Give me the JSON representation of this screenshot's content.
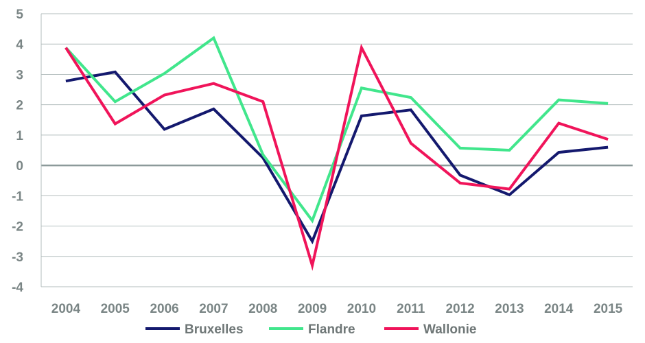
{
  "chart_data": {
    "type": "line",
    "title": "",
    "xlabel": "",
    "ylabel": "",
    "ylim": [
      -4,
      5
    ],
    "yticks": [
      5,
      4,
      3,
      2,
      1,
      0,
      -1,
      -2,
      -3,
      -4
    ],
    "x": [
      "2004",
      "2005",
      "2006",
      "2007",
      "2008",
      "2009",
      "2010",
      "2011",
      "2012",
      "2013",
      "2014",
      "2015"
    ],
    "grid": true,
    "legend_position": "bottom",
    "series": [
      {
        "name": "Bruxelles",
        "color": "#14196e",
        "values": [
          2.78,
          3.08,
          1.19,
          1.86,
          0.25,
          -2.5,
          1.63,
          1.83,
          -0.32,
          -0.97,
          0.43,
          0.6
        ]
      },
      {
        "name": "Flandre",
        "color": "#41e68c",
        "values": [
          3.88,
          2.1,
          3.03,
          4.2,
          0.35,
          -1.82,
          2.55,
          2.24,
          0.57,
          0.5,
          2.16,
          2.04
        ]
      },
      {
        "name": "Wallonie",
        "color": "#f0145a",
        "values": [
          3.88,
          1.37,
          2.32,
          2.7,
          2.1,
          -3.3,
          3.88,
          0.73,
          -0.58,
          -0.78,
          1.39,
          0.86
        ]
      }
    ]
  }
}
